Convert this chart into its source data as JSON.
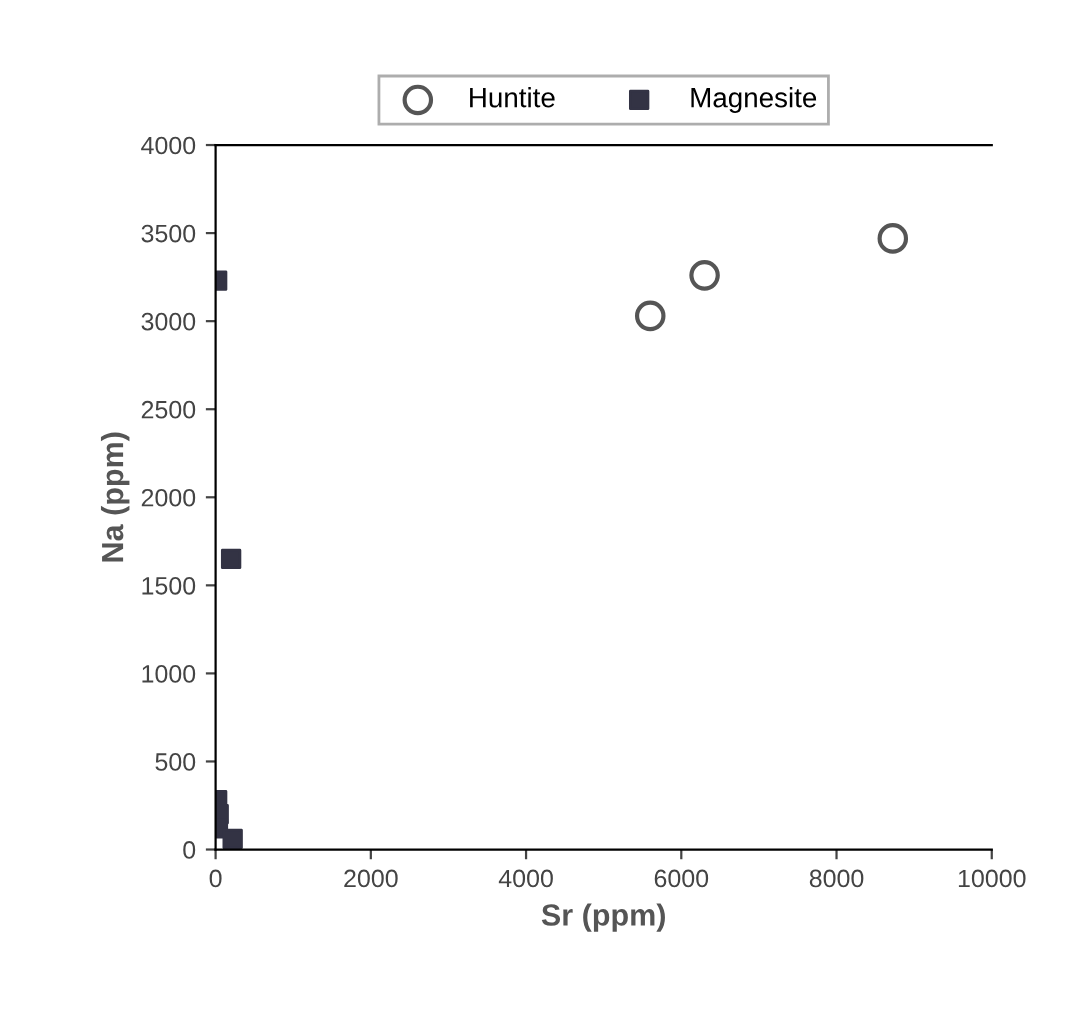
{
  "chart_data": {
    "type": "scatter",
    "xlabel": "Sr (ppm)",
    "ylabel": "Na (ppm)",
    "series": [
      {
        "name": "Huntite",
        "color": "#555555",
        "marker": "circle",
        "x": [
          5600,
          6300,
          8725
        ],
        "values": [
          3030,
          3260,
          3470
        ]
      },
      {
        "name": "Magnesite",
        "color": "#333344",
        "marker": "square",
        "x": [
          20,
          200,
          20,
          40,
          30,
          220
        ],
        "values": [
          3230,
          1650,
          280,
          200,
          120,
          60
        ]
      }
    ],
    "xlim": [
      0,
      10000
    ],
    "xticks": [
      0,
      2000,
      4000,
      6000,
      8000,
      10000
    ],
    "ylim": [
      0,
      4000
    ],
    "yticks": [
      0,
      500,
      1000,
      1500,
      2000,
      2500,
      3000,
      3500,
      4000
    ],
    "grid": false,
    "legend": "top"
  }
}
